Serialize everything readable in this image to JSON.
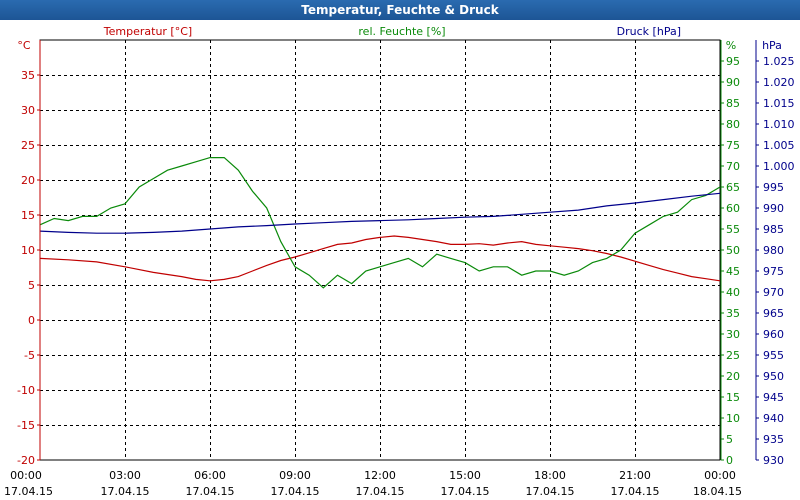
{
  "window": {
    "title": "Temperatur, Feuchte & Druck"
  },
  "colors": {
    "temperature": "#c00000",
    "humidity": "#0a8a0a",
    "pressure": "#00008b",
    "grid": "#000000"
  },
  "chart_data": {
    "type": "line",
    "title": "Temperatur, Feuchte & Druck",
    "grid": true,
    "x_ticks": [
      {
        "time": "00:00",
        "date": "17.04.15"
      },
      {
        "time": "03:00",
        "date": "17.04.15"
      },
      {
        "time": "06:00",
        "date": "17.04.15"
      },
      {
        "time": "09:00",
        "date": "17.04.15"
      },
      {
        "time": "12:00",
        "date": "17.04.15"
      },
      {
        "time": "15:00",
        "date": "17.04.15"
      },
      {
        "time": "18:00",
        "date": "17.04.15"
      },
      {
        "time": "21:00",
        "date": "17.04.15"
      },
      {
        "time": "00:00",
        "date": "18.04.15"
      }
    ],
    "xlim_hours": [
      0,
      24
    ],
    "axes": {
      "temperature": {
        "unit": "°C",
        "ylim": [
          -20,
          40
        ],
        "ticks": [
          "35",
          "30",
          "25",
          "20",
          "15",
          "10",
          "5",
          "0",
          "-5",
          "-10",
          "-15",
          "-20"
        ]
      },
      "humidity": {
        "unit": "%",
        "ylim": [
          0,
          100
        ],
        "ticks": [
          "95",
          "90",
          "85",
          "80",
          "75",
          "70",
          "65",
          "60",
          "55",
          "50",
          "45",
          "40",
          "35",
          "30",
          "25",
          "20",
          "15",
          "10",
          "5",
          "0"
        ]
      },
      "pressure": {
        "unit": "hPa",
        "ylim": [
          930,
          1030
        ],
        "ticks": [
          "1.025",
          "1.020",
          "1.015",
          "1.010",
          "1.005",
          "1.000",
          "995",
          "990",
          "985",
          "980",
          "975",
          "970",
          "965",
          "960",
          "955",
          "950",
          "945",
          "940",
          "935",
          "930"
        ]
      }
    },
    "series": [
      {
        "name": "Temperatur [°C]",
        "axis": "temperature",
        "x": [
          0,
          1,
          2,
          3,
          4,
          5,
          5.5,
          6,
          6.5,
          7,
          7.5,
          8,
          8.5,
          9,
          9.5,
          10,
          10.5,
          11,
          11.5,
          12,
          12.5,
          13,
          13.5,
          14,
          14.5,
          15,
          15.5,
          16,
          16.5,
          17,
          17.5,
          18,
          18.5,
          19,
          19.5,
          20,
          20.5,
          21,
          21.5,
          22,
          22.5,
          23,
          23.5,
          24
        ],
        "values": [
          8.8,
          8.6,
          8.3,
          7.6,
          6.8,
          6.2,
          5.8,
          5.6,
          5.8,
          6.2,
          7.0,
          7.8,
          8.5,
          9.0,
          9.6,
          10.2,
          10.8,
          11.0,
          11.5,
          11.8,
          12.0,
          11.8,
          11.5,
          11.2,
          10.8,
          10.8,
          10.9,
          10.7,
          11.0,
          11.2,
          10.8,
          10.6,
          10.4,
          10.2,
          9.9,
          9.5,
          9.0,
          8.4,
          7.8,
          7.2,
          6.7,
          6.2,
          5.9,
          5.6
        ]
      },
      {
        "name": "rel. Feuchte [%]",
        "axis": "humidity",
        "x": [
          0,
          0.5,
          1,
          1.5,
          2,
          2.5,
          3,
          3.5,
          4,
          4.5,
          5,
          5.5,
          6,
          6.5,
          7,
          7.5,
          8,
          8.5,
          9,
          9.5,
          10,
          10.5,
          11,
          11.5,
          12,
          12.5,
          13,
          13.5,
          14,
          14.5,
          15,
          15.5,
          16,
          16.5,
          17,
          17.5,
          18,
          18.5,
          19,
          19.5,
          20,
          20.5,
          21,
          21.5,
          22,
          22.5,
          23,
          23.5,
          24
        ],
        "values": [
          56,
          57.5,
          57,
          58,
          58,
          60,
          61,
          65,
          67,
          69,
          70,
          71,
          72,
          72,
          69,
          64,
          60,
          52,
          46,
          44,
          41,
          44,
          42,
          45,
          46,
          47,
          48,
          46,
          49,
          48,
          47,
          45,
          46,
          46,
          44,
          45,
          45,
          44,
          45,
          47,
          48,
          50,
          54,
          56,
          58,
          59,
          62,
          63,
          65
        ]
      },
      {
        "name": "Druck [hPa]",
        "axis": "pressure",
        "x": [
          0,
          1,
          2,
          3,
          4,
          5,
          6,
          7,
          8,
          9,
          10,
          11,
          12,
          13,
          14,
          15,
          16,
          17,
          18,
          19,
          20,
          21,
          22,
          23,
          24
        ],
        "values": [
          984.5,
          984.2,
          984.0,
          984.0,
          984.2,
          984.5,
          985.0,
          985.5,
          985.8,
          986.2,
          986.5,
          986.8,
          987.0,
          987.2,
          987.5,
          987.8,
          988.0,
          988.5,
          989.0,
          989.5,
          990.5,
          991.2,
          992.0,
          992.8,
          993.5
        ]
      }
    ]
  }
}
